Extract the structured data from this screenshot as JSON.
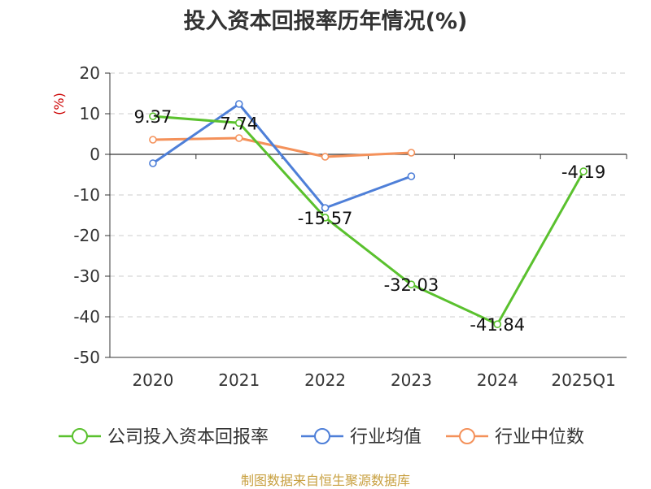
{
  "chart_data": {
    "type": "line",
    "title": "投入资本回报率历年情况(%)",
    "ylabel": "(%)",
    "xlabel": "",
    "categories": [
      "2020",
      "2021",
      "2022",
      "2023",
      "2024",
      "2025Q1"
    ],
    "ylim": [
      -50,
      20
    ],
    "yticks": [
      20,
      10,
      0,
      -10,
      -20,
      -30,
      -40,
      -50
    ],
    "grid": true,
    "legend_position": "bottom",
    "series": [
      {
        "name": "公司投入资本回报率",
        "color": "#5ac12e",
        "values": [
          9.37,
          7.74,
          -15.57,
          -32.03,
          -41.84,
          -4.19
        ],
        "labels": [
          "9.37",
          "7.74",
          "-15.57",
          "-32.03",
          "-41.84",
          "-4.19"
        ]
      },
      {
        "name": "行业均值",
        "color": "#4e7fd8",
        "values": [
          -2.2,
          12.4,
          -13.2,
          -5.4,
          null,
          null
        ]
      },
      {
        "name": "行业中位数",
        "color": "#f4915a",
        "values": [
          3.6,
          4.0,
          -0.6,
          0.4,
          null,
          null
        ]
      }
    ]
  },
  "source_note": "制图数据来自恒生聚源数据库"
}
